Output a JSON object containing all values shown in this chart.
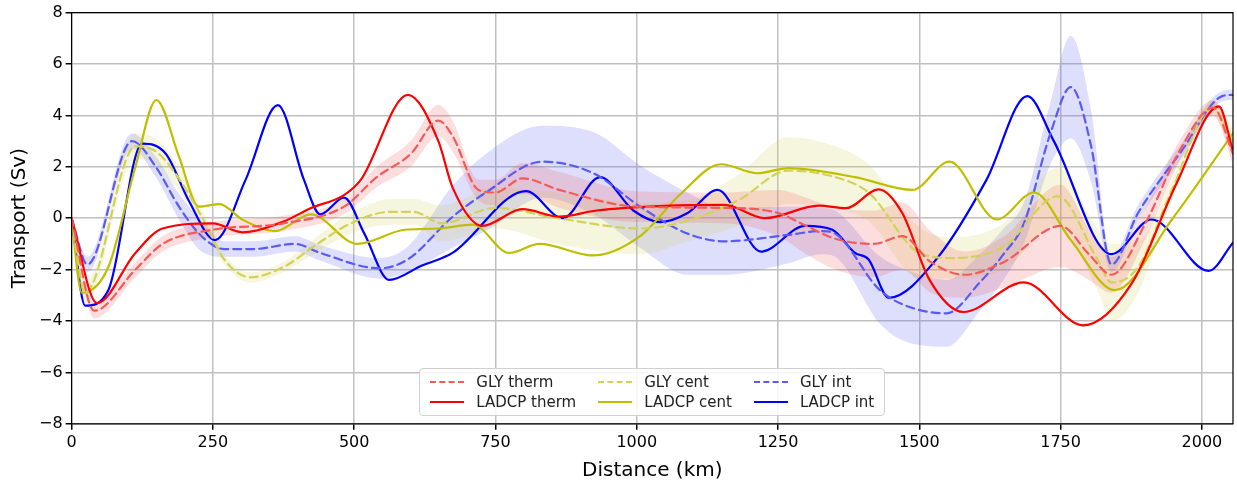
{
  "chart_data": {
    "type": "line",
    "xlabel": "Distance (km)",
    "ylabel": "Transport (Sv)",
    "xlim": [
      0,
      2055
    ],
    "xticks": [
      0,
      250,
      500,
      750,
      1000,
      1250,
      1500,
      1750,
      2000
    ],
    "ylim": [
      -8,
      8
    ],
    "yticks": [
      -8,
      -6,
      -4,
      -2,
      0,
      2,
      4,
      6,
      8
    ],
    "grid": true,
    "legend": "bottom",
    "series": [
      {
        "name": "GLY therm",
        "color": "#f55a5a",
        "line_style": "dashed",
        "x": [
          0,
          40,
          113,
          161,
          250,
          375,
          482,
          540,
          600,
          649,
          674,
          720,
          750,
          798,
          863,
          1000,
          1155,
          1250,
          1300,
          1351,
          1420,
          1470,
          1520,
          1580,
          1650,
          1750,
          1800,
          1840,
          1900,
          1960,
          2020,
          2055
        ],
        "values": [
          0,
          -3.6,
          -2.0,
          -1.0,
          -0.45,
          -0.2,
          0.45,
          1.6,
          2.5,
          3.8,
          3.2,
          1.1,
          1.0,
          1.55,
          1.1,
          0.45,
          0.4,
          0.2,
          -0.3,
          -0.8,
          -1.0,
          -0.7,
          -1.7,
          -2.2,
          -1.7,
          -0.3,
          -1.4,
          -2.2,
          -0.2,
          2.6,
          4.3,
          2.5
        ],
        "lower": [
          -0.1,
          -3.9,
          -2.3,
          -1.3,
          -0.75,
          -0.5,
          0.15,
          1.2,
          2.0,
          3.2,
          2.6,
          0.7,
          0.5,
          0.95,
          0.4,
          -0.15,
          -0.2,
          -0.7,
          -1.4,
          -2.0,
          -2.3,
          -2.0,
          -2.9,
          -3.1,
          -2.7,
          -1.9,
          -2.4,
          -2.9,
          -0.8,
          2.2,
          4.0,
          2.1
        ],
        "upper": [
          0.1,
          -3.3,
          -1.7,
          -0.7,
          -0.15,
          0.1,
          0.75,
          2.0,
          3.0,
          4.4,
          3.8,
          1.5,
          1.5,
          2.15,
          1.8,
          1.05,
          1.0,
          1.1,
          0.8,
          0.4,
          0.3,
          0.6,
          -0.5,
          -1.3,
          -0.7,
          1.3,
          -0.4,
          -1.5,
          0.4,
          3.0,
          4.6,
          2.9
        ]
      },
      {
        "name": "LADCP therm",
        "color": "#ff0000",
        "line_style": "solid",
        "x": [
          0,
          45,
          113,
          161,
          250,
          302,
          375,
          423,
          482,
          512,
          595,
          649,
          674,
          727,
          798,
          863,
          929,
          1048,
          1155,
          1227,
          1322,
          1370,
          1428,
          1470,
          1518,
          1578,
          1685,
          1790,
          1877,
          1955,
          2030,
          2055
        ],
        "values": [
          0,
          -3.3,
          -1.35,
          -0.4,
          -0.2,
          -0.55,
          -0.13,
          0.39,
          0.9,
          1.5,
          4.8,
          3.0,
          1.2,
          -0.3,
          0.35,
          0.06,
          0.3,
          0.48,
          0.52,
          0,
          0.49,
          0.39,
          1.12,
          0.19,
          -2.4,
          -3.65,
          -2.5,
          -4.17,
          -2.5,
          1.35,
          4.35,
          2.6
        ]
      },
      {
        "name": "GLY cent",
        "color": "#d2d25a",
        "line_style": "dashed",
        "x": [
          0,
          24,
          113,
          149,
          185,
          233,
          270,
          316,
          375,
          435,
          494,
          565,
          605,
          655,
          750,
          860,
          1008,
          1090,
          1180,
          1268,
          1351,
          1410,
          1500,
          1560,
          1649,
          1745,
          1815,
          1840,
          1887,
          1947,
          2018,
          2055
        ],
        "values": [
          0,
          -2.9,
          2.8,
          2.6,
          1.7,
          -0.05,
          -1.6,
          -2.3,
          -1.9,
          -1.0,
          -0.2,
          0.25,
          0.25,
          -0.2,
          0.4,
          0.0,
          -0.4,
          -0.1,
          0.7,
          1.85,
          1.6,
          1.0,
          -1.35,
          -1.55,
          -1.1,
          0.85,
          -1.6,
          -2.5,
          -1.9,
          1.1,
          4.3,
          3.0
        ],
        "lower": [
          -0.1,
          -3.3,
          2.3,
          2.1,
          1.2,
          -0.35,
          -1.8,
          -2.5,
          -2.1,
          -1.3,
          -0.6,
          -0.25,
          -0.25,
          -0.9,
          -0.4,
          -1.0,
          -1.4,
          -0.9,
          -0.3,
          0.55,
          0.4,
          -0.1,
          -2.35,
          -2.35,
          -2.0,
          -0.25,
          -2.8,
          -4.0,
          -2.9,
          0.7,
          4.0,
          2.5
        ],
        "upper": [
          0.1,
          -2.5,
          3.3,
          3.1,
          2.2,
          0.25,
          -1.4,
          -2.1,
          -1.7,
          -0.7,
          0.2,
          0.75,
          0.75,
          0.5,
          1.2,
          1.0,
          0.6,
          0.7,
          1.7,
          3.15,
          2.8,
          2.1,
          -0.35,
          -0.75,
          -0.2,
          1.95,
          -0.4,
          -1.0,
          -0.9,
          1.5,
          4.6,
          3.5
        ]
      },
      {
        "name": "LADCP cent",
        "color": "#bfbf00",
        "line_style": "solid",
        "x": [
          0,
          18,
          65,
          113,
          150,
          190,
          225,
          262,
          302,
          361,
          423,
          506,
          589,
          649,
          710,
          774,
          828,
          923,
          1006,
          1078,
          1149,
          1214,
          1268,
          1386,
          1488,
          1553,
          1637,
          1703,
          1768,
          1846,
          1947,
          2055
        ],
        "values": [
          0,
          -2.9,
          -1.9,
          2.0,
          4.6,
          2.4,
          0.45,
          0.55,
          -0.05,
          -0.5,
          0.15,
          -1.0,
          -0.45,
          -0.4,
          -0.25,
          -1.35,
          -1.0,
          -1.45,
          -0.7,
          0.95,
          2.1,
          1.75,
          1.95,
          1.6,
          1.1,
          2.2,
          -0.05,
          1.0,
          -0.85,
          -2.8,
          -0.05,
          3.3
        ]
      },
      {
        "name": "GLY int",
        "color": "#5a5af5",
        "line_style": "dashed",
        "x": [
          0,
          28,
          107,
          149,
          190,
          230,
          270,
          321,
          395,
          440,
          545,
          595,
          674,
          733,
          833,
          923,
          1006,
          1090,
          1155,
          1268,
          1327,
          1351,
          1428,
          1470,
          1548,
          1607,
          1649,
          1685,
          1732,
          1768,
          1804,
          1840,
          1887,
          1965,
          2036,
          2055
        ],
        "values": [
          0,
          -1.8,
          3.0,
          2.0,
          0.45,
          -0.7,
          -1.2,
          -1.2,
          -1.0,
          -1.35,
          -1.95,
          -1.6,
          0.05,
          1.0,
          2.2,
          1.75,
          0.45,
          -0.6,
          -0.9,
          -0.65,
          -0.5,
          -0.6,
          -2.75,
          -3.35,
          -3.7,
          -2.5,
          -1.4,
          -0.2,
          3.3,
          5.1,
          2.8,
          -1.8,
          0.2,
          2.65,
          4.75,
          4.8
        ],
        "lower": [
          -0.1,
          -2.1,
          2.7,
          1.6,
          -0.05,
          -1.3,
          -1.5,
          -1.5,
          -1.3,
          -1.65,
          -2.35,
          -2.1,
          -1.15,
          -0.5,
          0.8,
          0.15,
          -1.15,
          -2.2,
          -2.2,
          -1.75,
          -1.4,
          -1.5,
          -4.05,
          -4.75,
          -5.0,
          -3.6,
          -2.4,
          -1.0,
          2.1,
          3.1,
          1.4,
          -2.1,
          -0.1,
          2.35,
          4.55,
          4.6
        ],
        "upper": [
          0.1,
          -1.5,
          3.3,
          2.4,
          0.95,
          -0.1,
          -0.9,
          -0.9,
          -0.7,
          -1.05,
          -1.55,
          -1.1,
          1.25,
          2.5,
          3.6,
          3.35,
          2.05,
          1.0,
          0.4,
          0.45,
          0.4,
          0.3,
          -1.45,
          -1.95,
          -2.4,
          -1.4,
          -0.4,
          0.6,
          4.5,
          7.1,
          4.2,
          -1.5,
          0.5,
          2.95,
          4.95,
          5.0
        ]
      },
      {
        "name": "LADCP int",
        "color": "#0000ff",
        "line_style": "solid",
        "x": [
          0,
          24,
          65,
          125,
          167,
          207,
          254,
          308,
          365,
          411,
          440,
          482,
          518,
          562,
          619,
          674,
          804,
          869,
          935,
          994,
          1042,
          1090,
          1143,
          1220,
          1298,
          1346,
          1386,
          1410,
          1446,
          1530,
          1619,
          1691,
          1738,
          1840,
          1911,
          2012,
          2055
        ],
        "values": [
          0,
          -3.4,
          -2.8,
          2.9,
          2.5,
          0.7,
          -0.85,
          1.5,
          4.4,
          1.5,
          0.15,
          0.8,
          -0.6,
          -2.4,
          -1.85,
          -1.35,
          1.05,
          0,
          1.6,
          0.3,
          -0.15,
          0.2,
          1.1,
          -1.3,
          -0.3,
          -0.45,
          -1.35,
          -1.6,
          -3.1,
          -1.6,
          1.5,
          4.75,
          3.0,
          -1.4,
          -0.05,
          -2.05,
          -0.95
        ]
      }
    ]
  }
}
